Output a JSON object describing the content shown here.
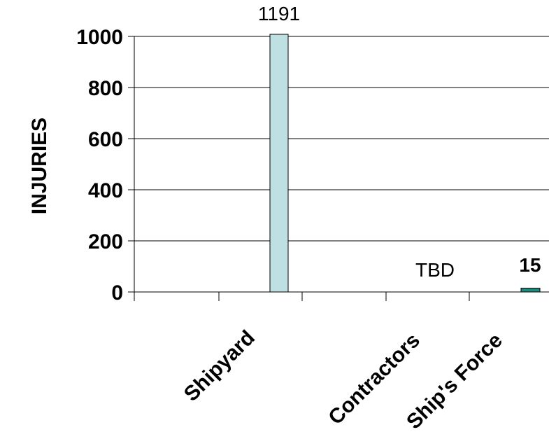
{
  "chart_data": {
    "type": "bar",
    "ylabel": "INJURIES",
    "xlabel": "",
    "title": "",
    "ylim": [
      0,
      1000
    ],
    "yticks": [
      0,
      200,
      400,
      600,
      800,
      1000
    ],
    "grid": true,
    "category_labels": [
      "Shipyard",
      "Contractors",
      "Ship's Force"
    ],
    "series": [
      {
        "values": [
          1191,
          null,
          15
        ],
        "data_labels": [
          "1191",
          "TBD",
          "15"
        ],
        "colors": [
          "#bfe0e3",
          null,
          "#1f8a7d"
        ]
      }
    ]
  }
}
